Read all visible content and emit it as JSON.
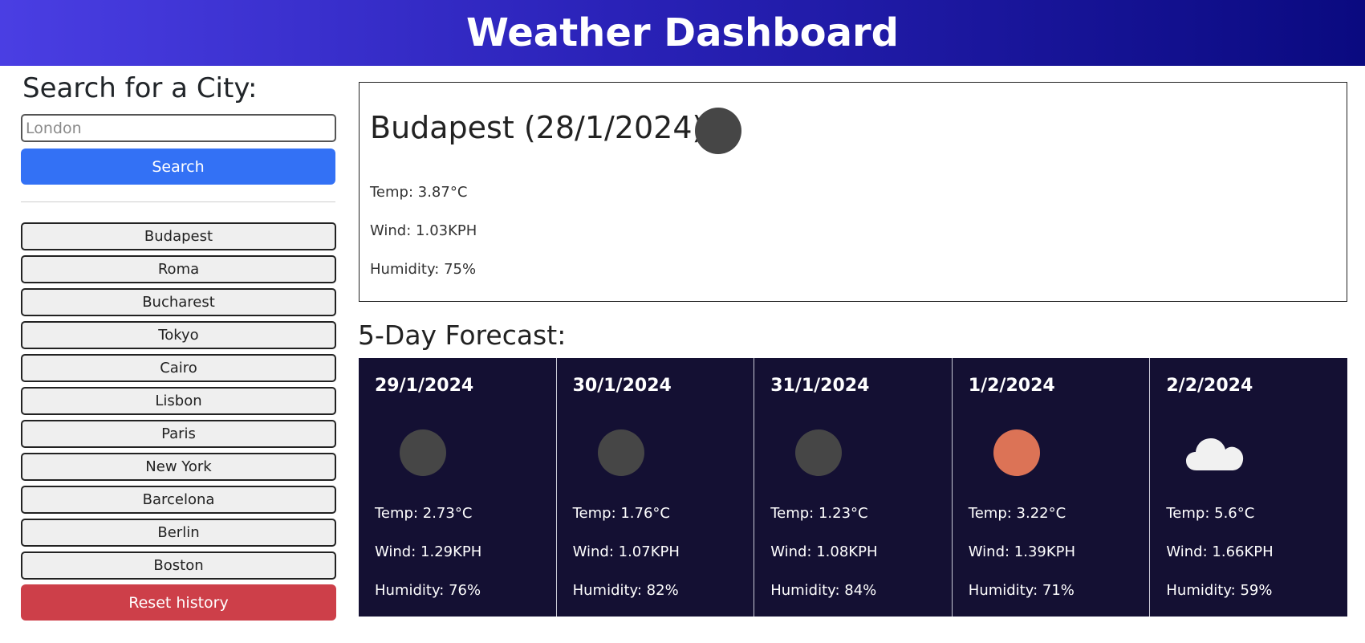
{
  "header": {
    "title": "Weather Dashboard"
  },
  "search": {
    "title": "Search for a City:",
    "placeholder": "London",
    "button_label": "Search"
  },
  "history": {
    "items": [
      "Budapest",
      "Roma",
      "Bucharest",
      "Tokyo",
      "Cairo",
      "Lisbon",
      "Paris",
      "New York",
      "Barcelona",
      "Berlin",
      "Boston"
    ],
    "reset_label": "Reset history"
  },
  "current": {
    "title": "Budapest (28/1/2024)",
    "icon": "dark-circle-icon",
    "temp": "Temp: 3.87°C",
    "wind": "Wind: 1.03KPH",
    "humidity": "Humidity: 75%"
  },
  "forecast": {
    "title": "5-Day Forecast:",
    "days": [
      {
        "date": "29/1/2024",
        "icon": "dark-circle-icon",
        "temp": "Temp: 2.73°C",
        "wind": "Wind: 1.29KPH",
        "humidity": "Humidity: 76%"
      },
      {
        "date": "30/1/2024",
        "icon": "dark-circle-icon",
        "temp": "Temp: 1.76°C",
        "wind": "Wind: 1.07KPH",
        "humidity": "Humidity: 82%"
      },
      {
        "date": "31/1/2024",
        "icon": "dark-circle-icon",
        "temp": "Temp: 1.23°C",
        "wind": "Wind: 1.08KPH",
        "humidity": "Humidity: 84%"
      },
      {
        "date": "1/2/2024",
        "icon": "sun-icon",
        "temp": "Temp: 3.22°C",
        "wind": "Wind: 1.39KPH",
        "humidity": "Humidity: 71%"
      },
      {
        "date": "2/2/2024",
        "icon": "cloud-icon",
        "temp": "Temp: 5.6°C",
        "wind": "Wind: 1.66KPH",
        "humidity": "Humidity: 59%"
      }
    ]
  },
  "colors": {
    "header_start": "#4a3ee3",
    "header_end": "#0a0a80",
    "search_button": "#3371f5",
    "reset_button": "#cd3f49",
    "forecast_bg": "#141033",
    "sun": "#dc7356",
    "moon": "#464646"
  }
}
